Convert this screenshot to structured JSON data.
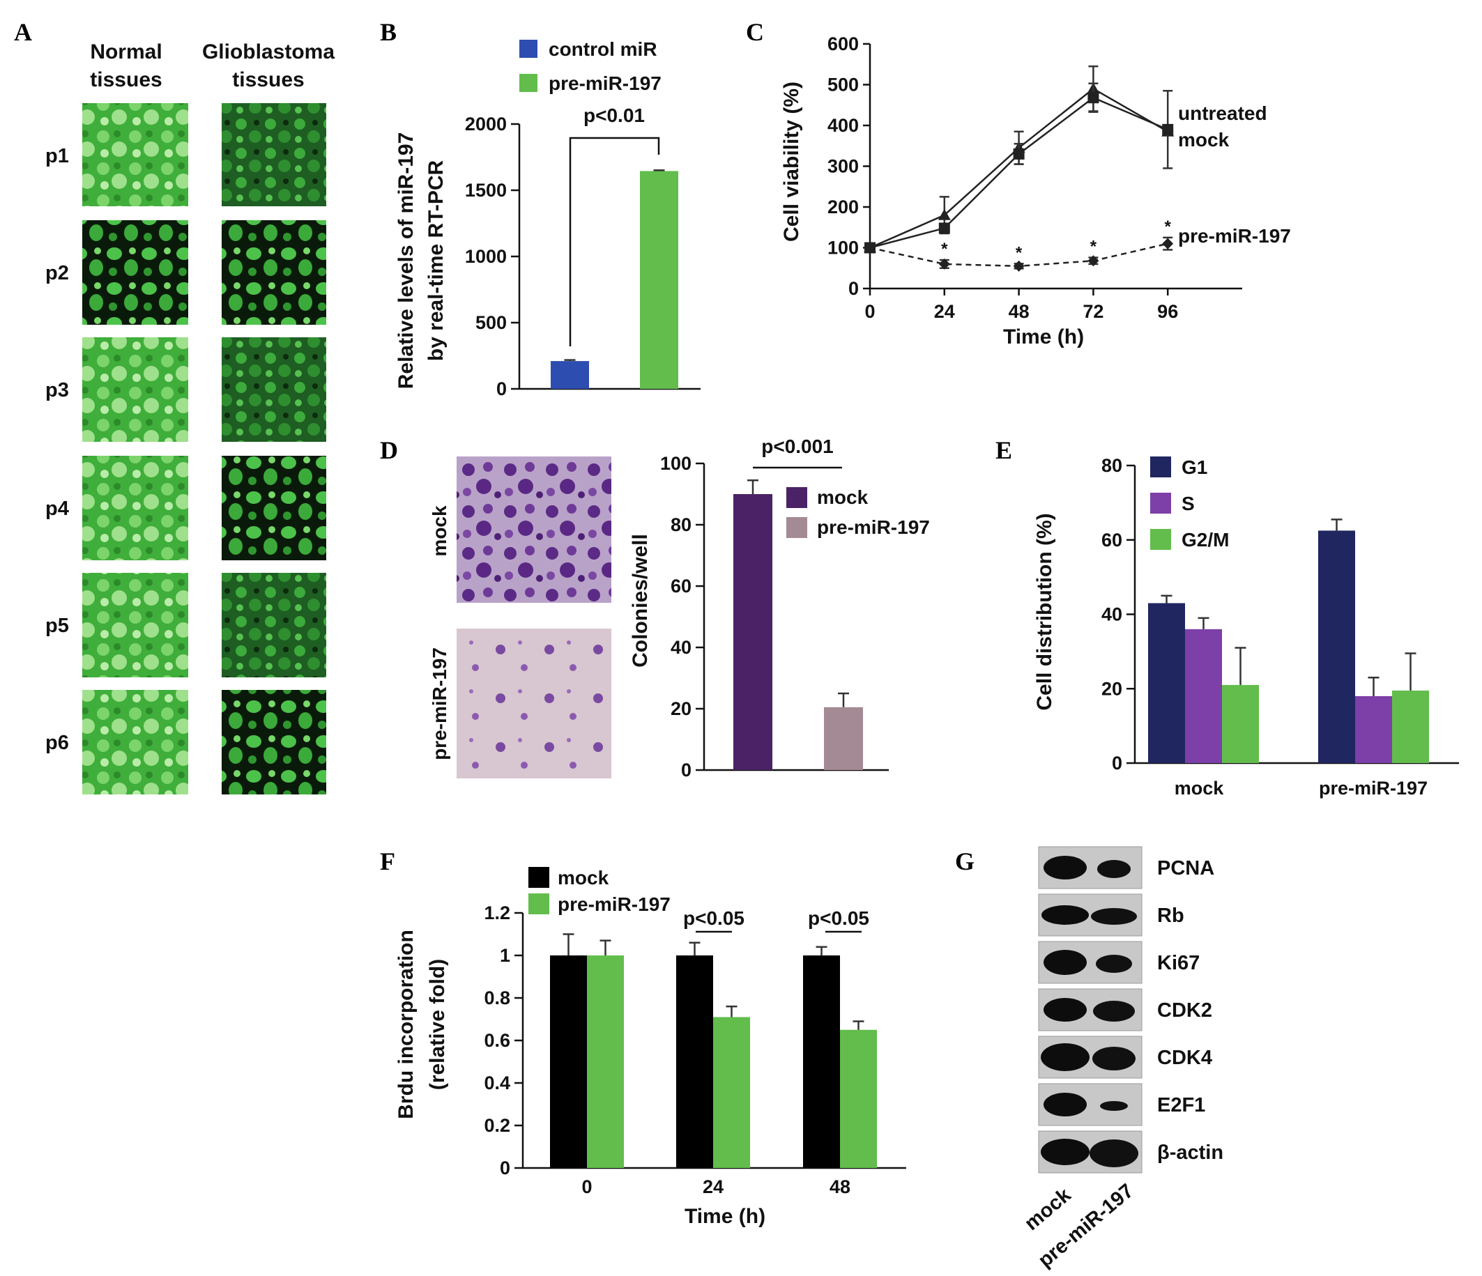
{
  "panels": {
    "A": {
      "label": "A",
      "col_headers": [
        [
          "Normal",
          "tissues"
        ],
        [
          "Glioblastoma",
          "tissues"
        ]
      ],
      "rows": [
        "p1",
        "p2",
        "p3",
        "p4",
        "p5",
        "p6"
      ]
    },
    "B": {
      "label": "B"
    },
    "C": {
      "label": "C"
    },
    "D": {
      "label": "D",
      "image_labels": [
        "mock",
        "pre-miR-197"
      ]
    },
    "E": {
      "label": "E"
    },
    "F": {
      "label": "F"
    },
    "G": {
      "label": "G",
      "proteins": [
        "PCNA",
        "Rb",
        "Ki67",
        "CDK2",
        "CDK4",
        "E2F1",
        "β-actin"
      ],
      "lanes": [
        "mock",
        "pre-miR-197"
      ]
    }
  },
  "colors": {
    "blue": "#2E4DB0",
    "green": "#62BD4C",
    "purple_dark": "#4B2266",
    "mauve": "#A48A94",
    "navy": "#202660",
    "violet": "#7D3FA8",
    "black": "#000000"
  },
  "chart_data": [
    {
      "id": "B",
      "type": "bar",
      "categories": [
        "control miR",
        "pre-miR-197"
      ],
      "series": [
        {
          "values": [
            210,
            1645
          ],
          "errors": [
            8,
            6
          ]
        }
      ],
      "legend": [
        "control miR",
        "pre-miR-197"
      ],
      "legend_colors": [
        "#2E4DB0",
        "#62BD4C"
      ],
      "ylabel_lines": [
        "Relative levels of miR-197",
        "by real-time RT-PCR"
      ],
      "yticks": [
        0,
        500,
        1000,
        1500,
        2000
      ],
      "ylim": [
        0,
        2000
      ],
      "annotation": "p<0.01"
    },
    {
      "id": "C",
      "type": "line",
      "x": [
        0,
        24,
        48,
        72,
        96
      ],
      "xticks": [
        0,
        24,
        48,
        72,
        96
      ],
      "yticks": [
        0,
        100,
        200,
        300,
        400,
        500,
        600
      ],
      "ylim": [
        0,
        600
      ],
      "xlim": [
        0,
        120
      ],
      "xlabel": "Time (h)",
      "ylabel": "Cell viability (%)",
      "series": [
        {
          "name": "untreated",
          "values": [
            100,
            180,
            345,
            490,
            385
          ],
          "errors": [
            0,
            45,
            40,
            55,
            0
          ],
          "marker": "triangle",
          "dashed": false
        },
        {
          "name": "mock",
          "values": [
            100,
            148,
            330,
            468,
            390
          ],
          "errors": [
            0,
            0,
            25,
            35,
            95
          ],
          "marker": "square",
          "dashed": false
        },
        {
          "name": "pre-miR-197",
          "values": [
            100,
            60,
            55,
            68,
            110
          ],
          "errors": [
            0,
            10,
            6,
            8,
            15
          ],
          "marker": "diamond",
          "dashed": true
        }
      ],
      "star_label": "*"
    },
    {
      "id": "D",
      "type": "bar",
      "categories": [
        "mock",
        "pre-miR-197"
      ],
      "series": [
        {
          "values": [
            90,
            20.5
          ],
          "errors": [
            4.5,
            4.5
          ]
        }
      ],
      "legend": [
        "mock",
        "pre-miR-197"
      ],
      "legend_colors": [
        "#4B2266",
        "#A48A94"
      ],
      "ylabel": "Colonies/well",
      "yticks": [
        0,
        20,
        40,
        60,
        80,
        100
      ],
      "ylim": [
        0,
        100
      ],
      "annotation": "p<0.001"
    },
    {
      "id": "E",
      "type": "bar",
      "categories": [
        "mock",
        "pre-miR-197"
      ],
      "series": [
        {
          "name": "G1",
          "values": [
            43,
            62.5
          ],
          "errors": [
            2,
            3
          ]
        },
        {
          "name": "S",
          "values": [
            36,
            18
          ],
          "errors": [
            3,
            5
          ]
        },
        {
          "name": "G2/M",
          "values": [
            21,
            19.5
          ],
          "errors": [
            10,
            10
          ]
        }
      ],
      "series_colors": [
        "#202660",
        "#7D3FA8",
        "#62BD4C"
      ],
      "ylabel": "Cell distribution (%)",
      "yticks": [
        0,
        20,
        40,
        60,
        80
      ],
      "ylim": [
        0,
        80
      ]
    },
    {
      "id": "F",
      "type": "bar",
      "categories": [
        "0",
        "24",
        "48"
      ],
      "series": [
        {
          "name": "mock",
          "values": [
            1.0,
            1.0,
            1.0
          ],
          "errors": [
            0.1,
            0.06,
            0.04
          ]
        },
        {
          "name": "pre-miR-197",
          "values": [
            1.0,
            0.71,
            0.65
          ],
          "errors": [
            0.07,
            0.05,
            0.04
          ]
        }
      ],
      "series_colors": [
        "#000000",
        "#62BD4C"
      ],
      "xlabel": "Time (h)",
      "ylabel_lines": [
        "Brdu incorporation",
        "(relative fold)"
      ],
      "yticks": [
        "0",
        "0.2",
        "0.4",
        "0.6",
        "0.8",
        "1",
        "1.2"
      ],
      "ylim": [
        0,
        1.2
      ],
      "annotations": [
        "p<0.05",
        "p<0.05"
      ]
    }
  ]
}
